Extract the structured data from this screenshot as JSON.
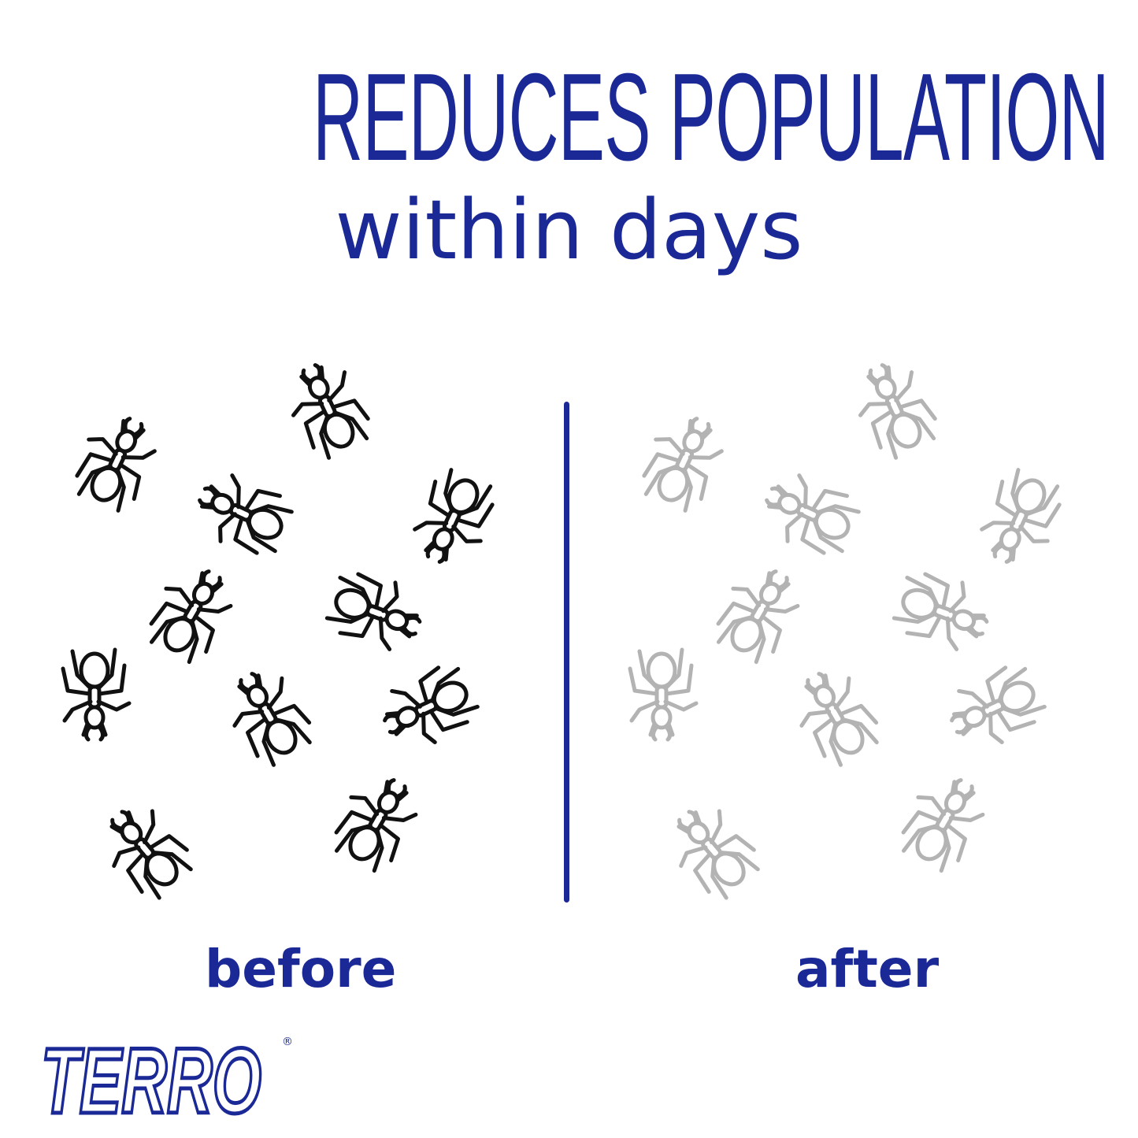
{
  "headline": "REDUCES POPULATION",
  "subheadline": "within days",
  "panels": {
    "before": {
      "label": "before",
      "ant_color": "#111111",
      "ant_count": 11
    },
    "after": {
      "label": "after",
      "ant_color": "#b3b3b3",
      "ant_count": 11
    }
  },
  "brand": {
    "logo_text": "TERRO",
    "registered_mark": "®"
  },
  "colors": {
    "brand_blue": "#1b2996",
    "background": "#ffffff"
  }
}
